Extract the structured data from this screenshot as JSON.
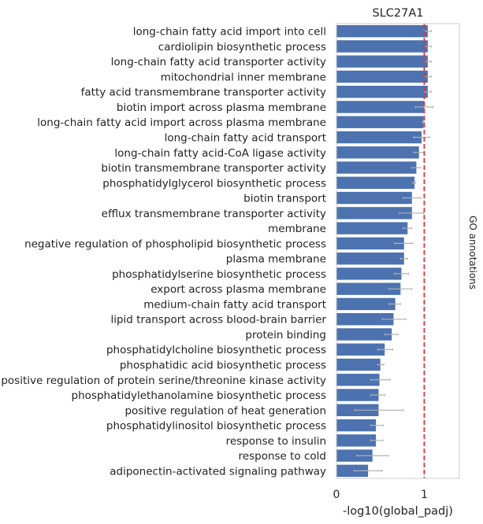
{
  "chart_data": {
    "type": "bar",
    "orientation": "horizontal",
    "title": "SLC27A1",
    "xlabel": "-log10(global_padj)",
    "ylabel": "",
    "side_label": "GO annotations",
    "xlim": [
      0,
      1.4
    ],
    "xticks": [
      0,
      1
    ],
    "threshold_line": 1.0,
    "colors": {
      "bar": "#4c72b0",
      "error": "#b0b0b0",
      "threshold": "#d9363e",
      "frame": "#cccccc"
    },
    "categories": [
      "long-chain fatty acid import into cell",
      "cardiolipin biosynthetic process",
      "long-chain fatty acid transporter activity",
      "mitochondrial inner membrane",
      "fatty acid transmembrane transporter activity",
      "biotin import across plasma membrane",
      "long-chain fatty acid import across plasma membrane",
      "long-chain fatty acid transport",
      "long-chain fatty acid-CoA ligase activity",
      "biotin transmembrane transporter activity",
      "phosphatidylglycerol biosynthetic process",
      "biotin transport",
      "efflux transmembrane transporter activity",
      "membrane",
      "negative regulation of phospholipid biosynthetic process",
      "plasma membrane",
      "phosphatidylserine biosynthetic process",
      "export across plasma membrane",
      "medium-chain fatty acid transport",
      "lipid transport across blood-brain barrier",
      "protein binding",
      "phosphatidylcholine biosynthetic process",
      "phosphatidic acid biosynthetic process",
      "positive regulation of protein serine/threonine kinase activity",
      "phosphatidylethanolamine biosynthetic process",
      "positive regulation of heat generation",
      "phosphatidylinositol biosynthetic process",
      "response to insulin",
      "response to cold",
      "adiponectin-activated signaling pathway"
    ],
    "values": [
      1.04,
      1.04,
      1.04,
      1.04,
      1.04,
      1.0,
      0.99,
      0.97,
      0.94,
      0.91,
      0.89,
      0.86,
      0.86,
      0.81,
      0.77,
      0.77,
      0.74,
      0.73,
      0.67,
      0.65,
      0.63,
      0.55,
      0.5,
      0.49,
      0.48,
      0.48,
      0.45,
      0.45,
      0.41,
      0.36
    ],
    "error": [
      [
        1.0,
        1.08
      ],
      [
        1.0,
        1.08
      ],
      [
        1.0,
        1.08
      ],
      [
        1.0,
        1.08
      ],
      [
        1.0,
        1.08
      ],
      [
        0.9,
        1.1
      ],
      [
        0.98,
        1.0
      ],
      [
        0.88,
        1.06
      ],
      [
        0.88,
        1.0
      ],
      [
        0.86,
        0.96
      ],
      [
        0.87,
        0.9
      ],
      [
        0.76,
        0.96
      ],
      [
        0.72,
        0.99
      ],
      [
        0.76,
        0.86
      ],
      [
        0.66,
        0.87
      ],
      [
        0.73,
        0.81
      ],
      [
        0.66,
        0.82
      ],
      [
        0.6,
        0.86
      ],
      [
        0.6,
        0.73
      ],
      [
        0.52,
        0.79
      ],
      [
        0.55,
        0.7
      ],
      [
        0.47,
        0.64
      ],
      [
        0.47,
        0.54
      ],
      [
        0.39,
        0.61
      ],
      [
        0.39,
        0.55
      ],
      [
        0.21,
        0.76
      ],
      [
        0.39,
        0.53
      ],
      [
        0.39,
        0.53
      ],
      [
        0.23,
        0.59
      ],
      [
        0.2,
        0.52
      ]
    ]
  }
}
